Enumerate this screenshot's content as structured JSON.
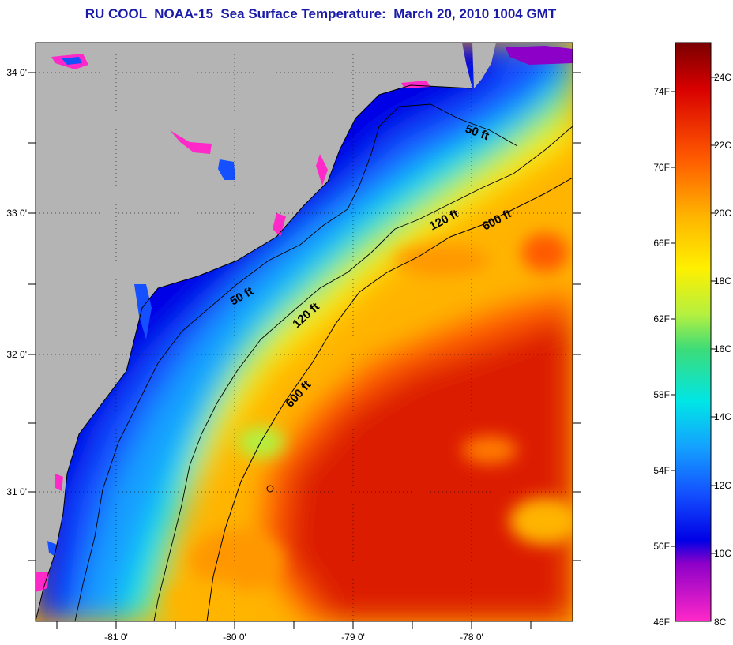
{
  "title": "RU COOL  NOAA-15  Sea Surface Temperature:  March 20, 2010 1004 GMT",
  "map": {
    "lon_ticks": [
      "-81 0'",
      "-80 0'",
      "-79 0'",
      "-78 0'"
    ],
    "lat_ticks": [
      "34 0'",
      "33 0'",
      "32 0'",
      "31 0'"
    ],
    "isobaths": [
      {
        "label": "50 ft",
        "at": "northeast"
      },
      {
        "label": "120 ft",
        "at": "northeast"
      },
      {
        "label": "600 ft",
        "at": "northeast"
      },
      {
        "label": "50 ft",
        "at": "central"
      },
      {
        "label": "120 ft",
        "at": "central"
      },
      {
        "label": "600 ft",
        "at": "southwest"
      }
    ],
    "colors": {
      "land": "#b4b4b4",
      "shelf": "#1f4bff",
      "gulf_stream": "#dc1a00"
    }
  },
  "colorbar": {
    "fahrenheit": [
      "74F",
      "70F",
      "66F",
      "62F",
      "58F",
      "54F",
      "50F",
      "46F"
    ],
    "celsius": [
      "24C",
      "22C",
      "20C",
      "18C",
      "16C",
      "14C",
      "12C",
      "10C",
      "8C"
    ],
    "stops": [
      "#7a0000",
      "#d80000",
      "#ff5a00",
      "#ffb400",
      "#fff000",
      "#b4f040",
      "#3cdc78",
      "#00e6e6",
      "#14a0ff",
      "#1450ff",
      "#0000e6",
      "#8c00c8",
      "#ff28c8"
    ]
  }
}
